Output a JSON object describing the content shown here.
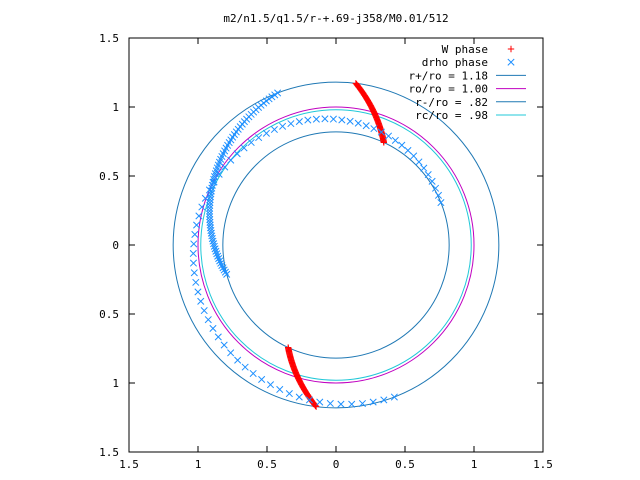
{
  "chart_data": {
    "type": "scatter",
    "title": "m2/n1.5/q1.5/r-+.69-j358/M0.01/512",
    "xlabel": "",
    "ylabel": "",
    "xlim": [
      -1.5,
      1.5
    ],
    "ylim": [
      -1.5,
      1.5
    ],
    "x_ticks": [
      -1.5,
      -1,
      -0.5,
      0,
      0.5,
      1,
      1.5
    ],
    "y_ticks": [
      -1.5,
      -1,
      -0.5,
      0,
      0.5,
      1,
      1.5
    ],
    "x_tick_labels": [
      "1.5",
      "1",
      "0.5",
      "0",
      "0.5",
      "1",
      "1.5"
    ],
    "y_tick_labels": [
      "1.5",
      "1",
      "0.5",
      "0",
      "0.5",
      "1",
      "1.5"
    ],
    "grid": false,
    "legend_position": "top-right",
    "series": [
      {
        "name": "W phase",
        "kind": "points",
        "marker": "plus",
        "color": "#ff0000",
        "arcs": [
          {
            "r_start": 1.18,
            "theta_start_deg": 83,
            "r_end": 0.82,
            "theta_end_deg": 65
          },
          {
            "r_start": 1.18,
            "theta_start_deg": 263,
            "r_end": 0.82,
            "theta_end_deg": 245
          }
        ]
      },
      {
        "name": "drho phase",
        "kind": "points",
        "marker": "cross",
        "color": "#1e90ff",
        "arcs": [
          {
            "r_start": 1.18,
            "theta_start_deg": 111,
            "r_end": 0.82,
            "theta_end_deg": 195
          },
          {
            "r_start": 0.82,
            "theta_start_deg": 22,
            "r_end": 1.18,
            "theta_end_deg": 291
          }
        ]
      },
      {
        "name": "r+/ro = 1.18",
        "kind": "circle",
        "r": 1.18,
        "color": "#1f78b4"
      },
      {
        "name": "ro/ro = 1.00",
        "kind": "circle",
        "r": 1.0,
        "color": "#c000c0"
      },
      {
        "name": "r-/ro = .82",
        "kind": "circle",
        "r": 0.82,
        "color": "#1f78b4"
      },
      {
        "name": "rc/ro = .98",
        "kind": "circle",
        "r": 0.98,
        "color": "#20c8d8"
      }
    ]
  }
}
